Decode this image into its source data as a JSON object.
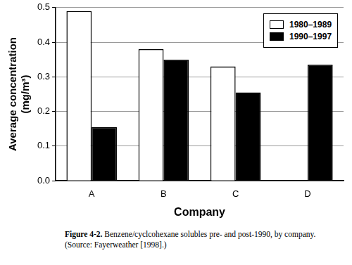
{
  "chart_data": {
    "type": "bar",
    "categories": [
      "A",
      "B",
      "C",
      "D"
    ],
    "series": [
      {
        "name": "1980–1989",
        "color": "#ffffff",
        "values": [
          0.49,
          0.38,
          0.33,
          null
        ]
      },
      {
        "name": "1990–1997",
        "color": "#000000",
        "values": [
          0.155,
          0.35,
          0.255,
          0.335
        ]
      }
    ],
    "x_label": "Company",
    "y_label": [
      "Average concentration",
      "(mg/m³)"
    ],
    "ylim": [
      0,
      0.5
    ],
    "yticks": [
      {
        "value": 0,
        "label": "0.0"
      },
      0.1,
      0.2,
      0.3,
      0.4,
      0.5
    ],
    "grid": true,
    "legend": "upper right",
    "annotations": [
      "Figure 4-2. Benzene/cyclcohexane solubles pre- and post-1990, by company.",
      "(Source: Fayerweather [1998].)"
    ]
  }
}
